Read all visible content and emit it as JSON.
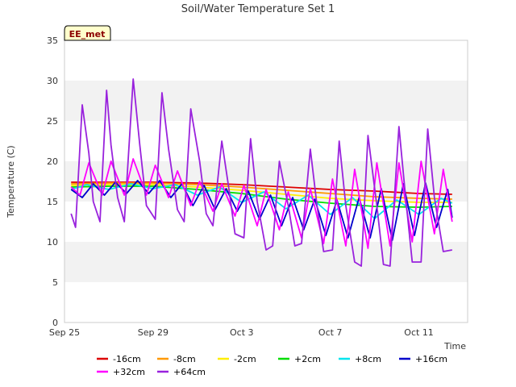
{
  "chart_data": {
    "type": "line",
    "title": "Soil/Water Temperature Set 1",
    "xlabel": "Time",
    "ylabel": "Temperature (C)",
    "badge": "EE_met",
    "xlim": [
      0,
      18.2
    ],
    "ylim": [
      0,
      35
    ],
    "yticks": [
      0,
      5,
      10,
      15,
      20,
      25,
      30,
      35
    ],
    "xticks": [
      {
        "label": "Sep 25",
        "day": 0
      },
      {
        "label": "Sep 29",
        "day": 4
      },
      {
        "label": "Oct 3",
        "day": 8
      },
      {
        "label": "Oct 7",
        "day": 12
      },
      {
        "label": "Oct 11",
        "day": 16
      }
    ],
    "grid": "horizontal alternating bands",
    "legend_position": "bottom",
    "series": [
      {
        "name": "-16cm",
        "color": "#dd0000",
        "x": [
          0.3,
          2,
          4,
          6,
          8,
          10,
          12,
          14,
          16,
          17.5
        ],
        "y": [
          17.4,
          17.4,
          17.4,
          17.3,
          17.1,
          16.8,
          16.5,
          16.3,
          16.0,
          15.9
        ]
      },
      {
        "name": "-8cm",
        "color": "#ff9900",
        "x": [
          0.3,
          2,
          4,
          6,
          8,
          10,
          12,
          14,
          16,
          17.5
        ],
        "y": [
          17.2,
          17.3,
          17.3,
          17.1,
          16.8,
          16.4,
          16.0,
          15.6,
          15.4,
          15.3
        ]
      },
      {
        "name": "-2cm",
        "color": "#ffee00",
        "x": [
          0.3,
          2,
          4,
          6,
          8,
          10,
          12,
          14,
          16,
          17.5
        ],
        "y": [
          17.0,
          17.1,
          17.1,
          16.8,
          16.4,
          15.9,
          15.4,
          15.1,
          14.9,
          14.9
        ]
      },
      {
        "name": "+2cm",
        "color": "#00dd00",
        "x": [
          0.3,
          2,
          4,
          6,
          8,
          10,
          12,
          14,
          16,
          17.5
        ],
        "y": [
          16.8,
          16.9,
          16.9,
          16.5,
          16.0,
          15.3,
          14.8,
          14.4,
          14.3,
          14.4
        ]
      },
      {
        "name": "+8cm",
        "color": "#00e5ee",
        "x": [
          0.3,
          1,
          2,
          3,
          4,
          5,
          6,
          7,
          8,
          9,
          10,
          11,
          12,
          13,
          14,
          15,
          16,
          17,
          17.5
        ],
        "y": [
          16.5,
          17.1,
          16.5,
          17.2,
          16.6,
          17.1,
          15.8,
          16.8,
          14.9,
          16.2,
          14.1,
          15.8,
          13.4,
          15.5,
          12.9,
          15.2,
          13.4,
          15.4,
          14.8
        ]
      },
      {
        "name": "+16cm",
        "color": "#0000cc",
        "x": [
          0.3,
          0.8,
          1.3,
          1.8,
          2.3,
          2.8,
          3.3,
          3.8,
          4.3,
          4.8,
          5.3,
          5.8,
          6.3,
          6.8,
          7.3,
          7.8,
          8.3,
          8.8,
          9.3,
          9.8,
          10.3,
          10.8,
          11.3,
          11.8,
          12.3,
          12.8,
          13.3,
          13.8,
          14.3,
          14.8,
          15.3,
          15.8,
          16.3,
          16.8,
          17.3,
          17.5
        ],
        "y": [
          16.5,
          15.5,
          17.2,
          15.8,
          17.4,
          16.0,
          17.6,
          16.0,
          17.6,
          15.5,
          17.2,
          14.5,
          17.0,
          14.0,
          16.6,
          13.8,
          16.3,
          12.8,
          15.8,
          12.0,
          15.5,
          11.5,
          15.3,
          10.8,
          15.2,
          10.5,
          15.5,
          10.5,
          16.6,
          10.2,
          17.2,
          10.8,
          17.3,
          11.8,
          16.5,
          13.0
        ]
      },
      {
        "name": "+32cm",
        "color": "#ff00ff",
        "x": [
          0.3,
          0.7,
          1.1,
          1.7,
          2.1,
          2.7,
          3.1,
          3.7,
          4.1,
          4.7,
          5.1,
          5.7,
          6.1,
          6.7,
          7.1,
          7.7,
          8.1,
          8.7,
          9.1,
          9.7,
          10.1,
          10.7,
          11.1,
          11.7,
          12.1,
          12.7,
          13.1,
          13.7,
          14.1,
          14.7,
          15.1,
          15.7,
          16.1,
          16.7,
          17.1,
          17.5
        ],
        "y": [
          16.8,
          15.8,
          19.8,
          15.8,
          20.0,
          15.8,
          20.3,
          15.8,
          19.5,
          15.5,
          18.8,
          14.5,
          17.5,
          13.8,
          17.2,
          13.2,
          17.0,
          12.0,
          16.5,
          11.5,
          16.2,
          10.5,
          16.6,
          9.8,
          17.8,
          9.5,
          19.0,
          9.2,
          19.8,
          9.5,
          19.8,
          10.0,
          20.0,
          11.0,
          19.0,
          12.5
        ]
      },
      {
        "name": "+64cm",
        "color": "#9922dd",
        "x": [
          0.3,
          0.5,
          0.8,
          1.1,
          1.3,
          1.6,
          1.9,
          2.1,
          2.4,
          2.7,
          3.1,
          3.4,
          3.7,
          4.1,
          4.4,
          4.7,
          5.1,
          5.4,
          5.7,
          6.1,
          6.4,
          6.7,
          7.1,
          7.4,
          7.7,
          8.1,
          8.4,
          8.7,
          9.1,
          9.4,
          9.7,
          10.1,
          10.4,
          10.7,
          11.1,
          11.4,
          11.7,
          12.1,
          12.4,
          12.7,
          13.1,
          13.4,
          13.7,
          14.1,
          14.4,
          14.7,
          15.1,
          15.4,
          15.7,
          16.1,
          16.4,
          16.7,
          17.1,
          17.5
        ],
        "y": [
          13.5,
          11.8,
          27.0,
          21.0,
          15.0,
          12.5,
          28.8,
          22.0,
          15.5,
          12.5,
          30.2,
          22.0,
          14.5,
          12.8,
          28.5,
          21.5,
          14.0,
          12.5,
          26.5,
          20.0,
          13.5,
          12.0,
          22.5,
          17.0,
          11.0,
          10.5,
          22.8,
          15.0,
          9.0,
          9.5,
          20.0,
          14.5,
          9.5,
          9.8,
          21.5,
          14.5,
          8.8,
          9.0,
          22.5,
          14.5,
          7.5,
          7.0,
          23.2,
          14.5,
          7.2,
          7.0,
          24.3,
          15.5,
          7.5,
          7.5,
          24.0,
          15.5,
          8.8,
          9.0
        ]
      }
    ]
  }
}
